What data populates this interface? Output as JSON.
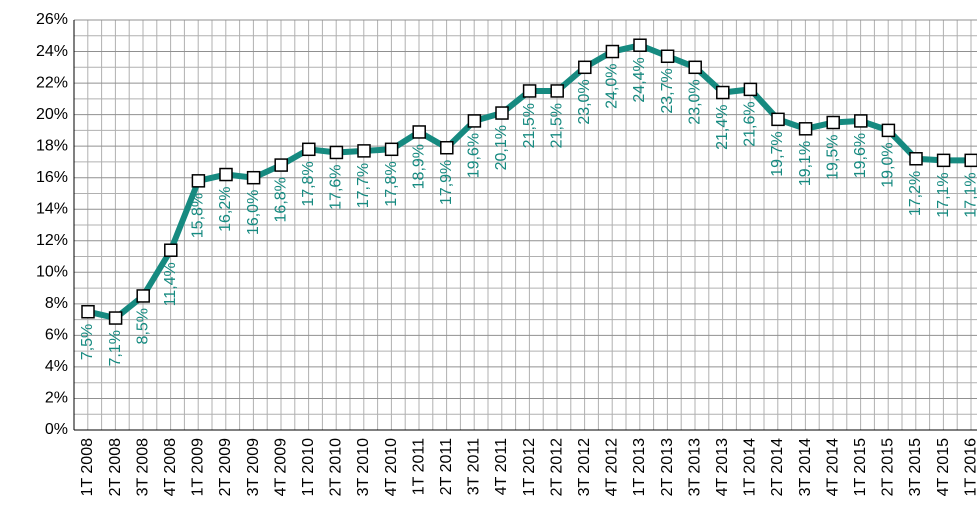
{
  "chart_data": {
    "type": "line",
    "categories": [
      "1T 2008",
      "2T 2008",
      "3T 2008",
      "4T 2008",
      "1T 2009",
      "2T 2009",
      "3T 2009",
      "4T 2009",
      "1T 2010",
      "2T 2010",
      "3T 2010",
      "4T 2010",
      "1T 2011",
      "2T 2011",
      "3T 2011",
      "4T 2011",
      "1T 2012",
      "2T 2012",
      "3T 2012",
      "4T 2012",
      "1T 2013",
      "2T 2013",
      "3T 2013",
      "4T 2013",
      "1T 2014",
      "2T 2014",
      "3T 2014",
      "4T 2014",
      "1T 2015",
      "2T 2015",
      "3T 2015",
      "4T 2015",
      "1T 2016"
    ],
    "series": [
      {
        "color": "#168a80",
        "values": [
          7.5,
          7.1,
          8.5,
          11.4,
          15.8,
          16.2,
          16.0,
          16.8,
          17.8,
          17.6,
          17.7,
          17.8,
          18.9,
          17.9,
          19.6,
          20.1,
          21.5,
          21.5,
          23.0,
          24.0,
          24.4,
          23.7,
          23.0,
          21.4,
          21.6,
          19.7,
          19.1,
          19.5,
          19.6,
          19.0,
          17.2,
          17.1,
          17.1
        ],
        "value_labels": [
          "7,5%",
          "7,1%",
          "8,5%",
          "11,4%",
          "15,8%",
          "16,2%",
          "16,0%",
          "16,8%",
          "17,8%",
          "17,6%",
          "17,7%",
          "17,8%",
          "18,9%",
          "17,9%",
          "19,6%",
          "20,1%",
          "21,5%",
          "21,5%",
          "23,0%",
          "24,0%",
          "24,4%",
          "23,7%",
          "23,0%",
          "21,4%",
          "21,6%",
          "19,7%",
          "19,1%",
          "19,5%",
          "19,6%",
          "19,0%",
          "17,2%",
          "17,1%",
          "17,1%"
        ]
      }
    ],
    "ylim": [
      0,
      26
    ],
    "yticks": [
      {
        "value": 0,
        "label": "0%"
      },
      {
        "value": 2,
        "label": "2%"
      },
      {
        "value": 4,
        "label": "4%"
      },
      {
        "value": 6,
        "label": "6%"
      },
      {
        "value": 8,
        "label": "8%"
      },
      {
        "value": 10,
        "label": "10%"
      },
      {
        "value": 12,
        "label": "12%"
      },
      {
        "value": 14,
        "label": "14%"
      },
      {
        "value": 16,
        "label": "16%"
      },
      {
        "value": 18,
        "label": "18%"
      },
      {
        "value": 20,
        "label": "20%"
      },
      {
        "value": 22,
        "label": "22%"
      },
      {
        "value": 24,
        "label": "24%"
      },
      {
        "value": 26,
        "label": "26%"
      }
    ],
    "grid": true
  }
}
